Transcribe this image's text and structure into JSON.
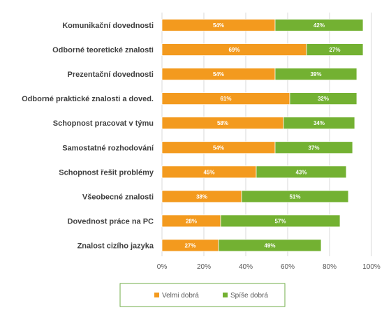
{
  "chart_data": {
    "type": "bar",
    "orientation": "horizontal",
    "stacked": true,
    "categories": [
      "Komunikační dovednosti",
      "Odborné teoretické znalosti",
      "Prezentační dovednosti",
      "Odborné praktické znalosti a doved.",
      "Schopnost pracovat v týmu",
      "Samostatné rozhodování",
      "Schopnost řešit problémy",
      "Všeobecné znalosti",
      "Dovednost práce na PC",
      "Znalost cizího jazyka"
    ],
    "series": [
      {
        "name": "Velmi dobrá",
        "color": "#F39A1E",
        "values": [
          54,
          69,
          54,
          61,
          58,
          54,
          45,
          38,
          28,
          27
        ],
        "labels": [
          "54%",
          "69%",
          "54%",
          "61%",
          "58%",
          "54%",
          "45%",
          "38%",
          "28%",
          "27%"
        ]
      },
      {
        "name": "Spíše dobrá",
        "color": "#73B132",
        "values": [
          42,
          27,
          39,
          32,
          34,
          37,
          43,
          51,
          57,
          49
        ],
        "labels": [
          "42%",
          "27%",
          "39%",
          "32%",
          "34%",
          "37%",
          "43%",
          "51%",
          "57%",
          "49%"
        ]
      }
    ],
    "xlim": [
      0,
      100
    ],
    "x_ticks": [
      0,
      20,
      40,
      60,
      80,
      100
    ],
    "x_tick_labels": [
      "0%",
      "20%",
      "40%",
      "60%",
      "80%",
      "100%"
    ],
    "grid": true,
    "legend_position": "bottom",
    "title": "",
    "xlabel": "",
    "ylabel": ""
  },
  "colors": {
    "grid": "#D9D9D9",
    "legend_border": "#70AD47"
  }
}
